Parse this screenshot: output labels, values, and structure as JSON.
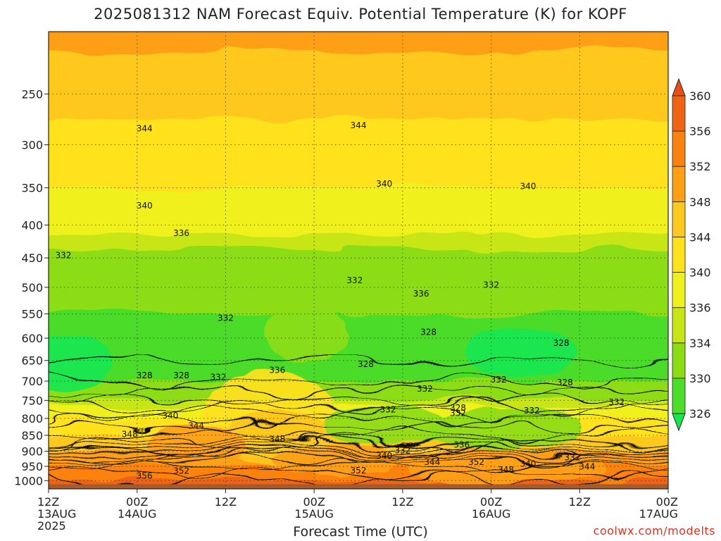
{
  "chart_data": {
    "type": "heatmap",
    "title": "2025081312 NAM Forecast Equiv. Potential Temperature (K) for KOPF",
    "xlabel": "Forecast Time (UTC)",
    "ylabel": "",
    "credit": "coolwx.com/modelts",
    "y_axis": {
      "scale": "log",
      "inverted": true,
      "ylim": [
        200,
        1030
      ],
      "ticks": [
        250,
        300,
        350,
        400,
        450,
        500,
        550,
        600,
        650,
        700,
        750,
        800,
        850,
        900,
        950,
        1000
      ]
    },
    "x_axis": {
      "xlim_hours": [
        0,
        84
      ],
      "ticks": [
        {
          "hour": 0,
          "lines": [
            "12Z",
            "13AUG",
            "2025"
          ]
        },
        {
          "hour": 12,
          "lines": [
            "00Z",
            "14AUG"
          ]
        },
        {
          "hour": 24,
          "lines": [
            "12Z"
          ]
        },
        {
          "hour": 36,
          "lines": [
            "00Z",
            "15AUG"
          ]
        },
        {
          "hour": 48,
          "lines": [
            "12Z"
          ]
        },
        {
          "hour": 60,
          "lines": [
            "00Z",
            "16AUG"
          ]
        },
        {
          "hour": 72,
          "lines": [
            "12Z"
          ]
        },
        {
          "hour": 84,
          "lines": [
            "00Z",
            "17AUG"
          ]
        }
      ]
    },
    "colorbar": {
      "levels": [
        326,
        330,
        334,
        336,
        340,
        344,
        348,
        352,
        356,
        360
      ],
      "colors": [
        "#14e650",
        "#4cdc2a",
        "#8cdc14",
        "#c8e614",
        "#f0f01e",
        "#ffe11e",
        "#ffc81e",
        "#ff9f14",
        "#fa8210",
        "#ef6414",
        "#e65016"
      ],
      "extend": "both"
    },
    "grid": true,
    "profile_representative": [
      {
        "p": 200,
        "theta_e": 349
      },
      {
        "p": 250,
        "theta_e": 346
      },
      {
        "p": 300,
        "theta_e": 342
      },
      {
        "p": 350,
        "theta_e": 340
      },
      {
        "p": 400,
        "theta_e": 337
      },
      {
        "p": 450,
        "theta_e": 333
      },
      {
        "p": 500,
        "theta_e": 331
      },
      {
        "p": 550,
        "theta_e": 330
      },
      {
        "p": 600,
        "theta_e": 329
      },
      {
        "p": 650,
        "theta_e": 328
      },
      {
        "p": 700,
        "theta_e": 330
      },
      {
        "p": 750,
        "theta_e": 334
      },
      {
        "p": 800,
        "theta_e": 340
      },
      {
        "p": 850,
        "theta_e": 344
      },
      {
        "p": 900,
        "theta_e": 348
      },
      {
        "p": 950,
        "theta_e": 352
      },
      {
        "p": 1000,
        "theta_e": 356
      }
    ],
    "contour_labels": [
      {
        "text": "344",
        "hour": 13,
        "p": 283
      },
      {
        "text": "344",
        "hour": 42,
        "p": 280
      },
      {
        "text": "340",
        "hour": 45.5,
        "p": 345
      },
      {
        "text": "340",
        "hour": 65,
        "p": 348
      },
      {
        "text": "340",
        "hour": 13,
        "p": 373
      },
      {
        "text": "336",
        "hour": 18,
        "p": 412
      },
      {
        "text": "332",
        "hour": 2,
        "p": 446
      },
      {
        "text": "332",
        "hour": 41.5,
        "p": 488
      },
      {
        "text": "336",
        "hour": 50.5,
        "p": 512
      },
      {
        "text": "332",
        "hour": 60,
        "p": 496
      },
      {
        "text": "332",
        "hour": 24,
        "p": 558
      },
      {
        "text": "328",
        "hour": 51.5,
        "p": 587
      },
      {
        "text": "328",
        "hour": 69.5,
        "p": 611
      },
      {
        "text": "328",
        "hour": 43,
        "p": 659
      },
      {
        "text": "336",
        "hour": 31,
        "p": 673
      },
      {
        "text": "328",
        "hour": 13,
        "p": 686
      },
      {
        "text": "328",
        "hour": 18,
        "p": 686
      },
      {
        "text": "332",
        "hour": 23,
        "p": 690
      },
      {
        "text": "332",
        "hour": 61,
        "p": 696
      },
      {
        "text": "328",
        "hour": 70,
        "p": 703
      },
      {
        "text": "332",
        "hour": 51,
        "p": 720
      },
      {
        "text": "332",
        "hour": 77,
        "p": 755
      },
      {
        "text": "328",
        "hour": 55.5,
        "p": 770
      },
      {
        "text": "332",
        "hour": 46,
        "p": 775
      },
      {
        "text": "332",
        "hour": 55.5,
        "p": 785
      },
      {
        "text": "332",
        "hour": 65.5,
        "p": 778
      },
      {
        "text": "340",
        "hour": 16.5,
        "p": 792
      },
      {
        "text": "344",
        "hour": 20,
        "p": 822
      },
      {
        "text": "348",
        "hour": 11,
        "p": 847
      },
      {
        "text": "348",
        "hour": 31,
        "p": 862
      },
      {
        "text": "336",
        "hour": 56,
        "p": 880
      },
      {
        "text": "332",
        "hour": 48,
        "p": 897
      },
      {
        "text": "340",
        "hour": 45.5,
        "p": 915
      },
      {
        "text": "344",
        "hour": 52,
        "p": 936
      },
      {
        "text": "352",
        "hour": 58,
        "p": 936
      },
      {
        "text": "332",
        "hour": 71,
        "p": 920
      },
      {
        "text": "340",
        "hour": 65,
        "p": 942
      },
      {
        "text": "344",
        "hour": 73,
        "p": 951
      },
      {
        "text": "348",
        "hour": 62,
        "p": 962
      },
      {
        "text": "352",
        "hour": 18,
        "p": 966
      },
      {
        "text": "352",
        "hour": 42,
        "p": 965
      },
      {
        "text": "356",
        "hour": 13,
        "p": 983
      }
    ]
  }
}
